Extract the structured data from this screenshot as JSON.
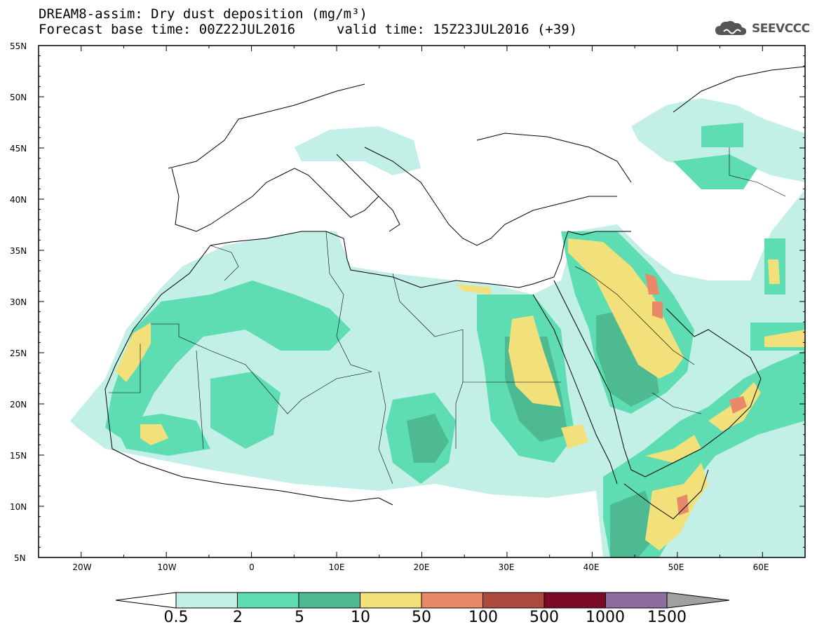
{
  "header": {
    "title": "DREAM8-assim: Dry dust deposition (mg/m³)",
    "base_time": "Forecast base time: 00Z22JUL2016",
    "valid_time": "valid time: 15Z23JUL2016 (+39)",
    "logo_text": "SEEVCCC"
  },
  "map": {
    "lat_labels": [
      "55N",
      "50N",
      "45N",
      "40N",
      "35N",
      "30N",
      "25N",
      "20N",
      "15N",
      "10N",
      "5N"
    ],
    "lon_labels": [
      "20W",
      "10W",
      "0",
      "10E",
      "20E",
      "30E",
      "40E",
      "50E",
      "60E"
    ],
    "lon_range": [
      -25,
      65
    ],
    "lat_range": [
      5,
      55
    ]
  },
  "legend": {
    "levels": [
      "0.5",
      "2",
      "5",
      "10",
      "50",
      "100",
      "500",
      "1000",
      "1500"
    ],
    "colors": [
      "#c2f0e6",
      "#5edcb2",
      "#4dba92",
      "#f2e17a",
      "#e9896a",
      "#ad4a3e",
      "#7a0a25",
      "#8e6ca0"
    ],
    "under_color": "#ffffff",
    "over_color": "#a0a0a0"
  }
}
